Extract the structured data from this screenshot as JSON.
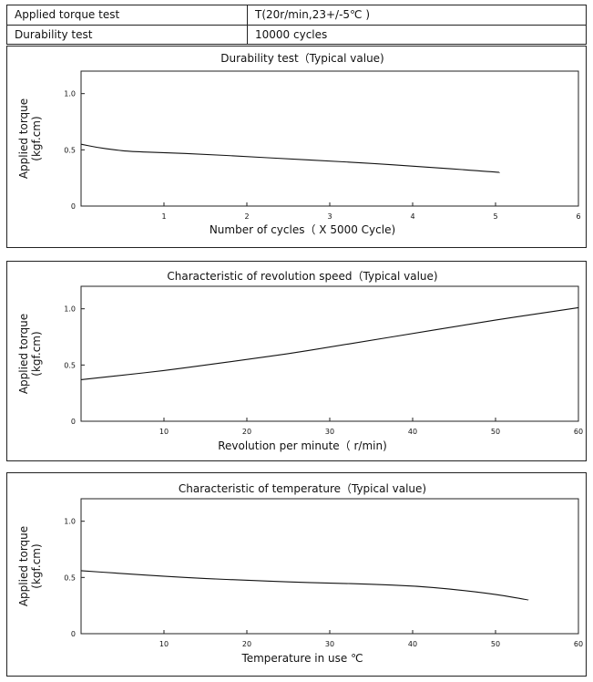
{
  "table": {
    "rows": [
      {
        "label": "Applied torque test",
        "value": "T(20r/min,23+/-5℃ )"
      },
      {
        "label": "Durability test",
        "value": "10000 cycles"
      }
    ]
  },
  "chart_data": [
    {
      "type": "line",
      "title": "Durability test（Typical value)",
      "xlabel": "Number of cycles（ X 5000 Cycle)",
      "ylabel": [
        "Applied torque",
        "(kgf.cm)"
      ],
      "xlim": [
        0,
        6
      ],
      "ylim": [
        0,
        1.2
      ],
      "x_ticks": [
        1,
        2,
        3,
        4,
        5,
        6
      ],
      "x_tick_labels": [
        "1",
        "2",
        "3",
        "4",
        "5",
        "6"
      ],
      "y_ticks": [
        0,
        0.5,
        1.0
      ],
      "y_tick_labels": [
        "0",
        "0.5",
        "1.0"
      ],
      "grid": false,
      "series": [
        {
          "x": [
            0,
            0.2,
            0.4,
            0.6,
            1.0,
            1.5,
            2.0,
            2.5,
            3.0,
            3.5,
            4.0,
            4.5,
            5.05
          ],
          "y": [
            0.55,
            0.52,
            0.5,
            0.485,
            0.475,
            0.46,
            0.44,
            0.42,
            0.4,
            0.38,
            0.355,
            0.33,
            0.3
          ]
        }
      ]
    },
    {
      "type": "line",
      "title": "Characteristic of revolution speed（Typical value)",
      "xlabel": "Revolution per minute（ r/min)",
      "ylabel": [
        "Applied torque",
        "(kgf.cm)"
      ],
      "xlim": [
        0,
        60
      ],
      "ylim": [
        0,
        1.2
      ],
      "x_ticks": [
        10,
        20,
        30,
        40,
        50,
        60
      ],
      "x_tick_labels": [
        "10",
        "20",
        "30",
        "40",
        "50",
        "60"
      ],
      "y_ticks": [
        0,
        0.5,
        1.0
      ],
      "y_tick_labels": [
        "0",
        "0.5",
        "1.0"
      ],
      "grid": false,
      "series": [
        {
          "x": [
            0,
            5,
            10,
            15,
            20,
            25,
            30,
            35,
            40,
            45,
            50,
            55,
            60
          ],
          "y": [
            0.37,
            0.41,
            0.45,
            0.5,
            0.55,
            0.6,
            0.66,
            0.72,
            0.78,
            0.84,
            0.9,
            0.955,
            1.01
          ]
        }
      ]
    },
    {
      "type": "line",
      "title": "Characteristic of temperature（Typical value)",
      "xlabel": "Temperature in use ℃",
      "ylabel": [
        "Applied torque",
        "(kgf.cm)"
      ],
      "xlim": [
        0,
        60
      ],
      "ylim": [
        0,
        1.2
      ],
      "x_ticks": [
        10,
        20,
        30,
        40,
        50,
        60
      ],
      "x_tick_labels": [
        "10",
        "20",
        "30",
        "40",
        "50",
        "60"
      ],
      "y_ticks": [
        0,
        0.5,
        1.0
      ],
      "y_tick_labels": [
        "0",
        "0.5",
        "1.0"
      ],
      "grid": false,
      "series": [
        {
          "x": [
            0,
            5,
            10,
            15,
            20,
            25,
            30,
            35,
            40,
            45,
            50,
            54
          ],
          "y": [
            0.56,
            0.535,
            0.51,
            0.49,
            0.475,
            0.46,
            0.45,
            0.44,
            0.425,
            0.395,
            0.35,
            0.3
          ]
        }
      ]
    }
  ]
}
